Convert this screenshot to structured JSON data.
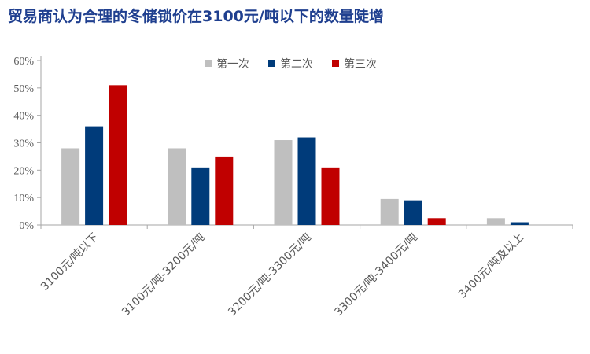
{
  "title": "贸易商认为合理的冬储锁价在3100元/吨以下的数量陡增",
  "chart_data": {
    "type": "bar",
    "categories": [
      "3100元/吨以下",
      "3100元/吨-3200元/吨",
      "3200元/吨-3300元/吨",
      "3300元/吨-3400元/吨",
      "3400元/吨及以上"
    ],
    "series": [
      {
        "name": "第一次",
        "color": "#bfbfbf",
        "values": [
          28,
          28,
          31,
          9.5,
          2.5
        ]
      },
      {
        "name": "第二次",
        "color": "#003b7a",
        "values": [
          36,
          21,
          32,
          9,
          1
        ]
      },
      {
        "name": "第三次",
        "color": "#c00000",
        "values": [
          51,
          25,
          21,
          2.5,
          0
        ]
      }
    ],
    "ylim": [
      0,
      60
    ],
    "yticks": [
      "0%",
      "10%",
      "20%",
      "30%",
      "40%",
      "50%",
      "60%"
    ],
    "grid": false,
    "legend": "top-center"
  }
}
